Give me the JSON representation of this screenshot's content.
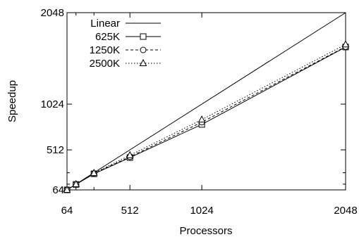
{
  "chart_data": {
    "type": "line",
    "xlabel": "Processors",
    "ylabel": "Speedup",
    "xlim": [
      64,
      2048
    ],
    "ylim": [
      64,
      2048
    ],
    "xticks": [
      64,
      512,
      1024,
      2048
    ],
    "yticks": [
      64,
      512,
      1024,
      2048
    ],
    "x_minor_ticks": [
      128,
      256
    ],
    "y_minor_ticks": [
      128,
      256
    ],
    "grid": false,
    "legend_position": "top-left",
    "series": [
      {
        "name": "Linear",
        "x": [
          64,
          2048
        ],
        "y": [
          64,
          2048
        ],
        "style": "solid",
        "marker": "none"
      },
      {
        "name": "625K",
        "x": [
          64,
          128,
          256,
          512,
          1024,
          2048
        ],
        "y": [
          64,
          125,
          244,
          426,
          797,
          1663
        ],
        "style": "solid",
        "marker": "square"
      },
      {
        "name": "1250K",
        "x": [
          64,
          128,
          256,
          512,
          1024,
          2048
        ],
        "y": [
          64,
          126,
          248,
          434,
          822,
          1667
        ],
        "style": "dashed",
        "marker": "circle"
      },
      {
        "name": "2500K",
        "x": [
          64,
          128,
          256,
          512,
          1024,
          2048
        ],
        "y": [
          64,
          127,
          252,
          452,
          850,
          1692
        ],
        "style": "dotted",
        "marker": "triangle"
      }
    ]
  }
}
